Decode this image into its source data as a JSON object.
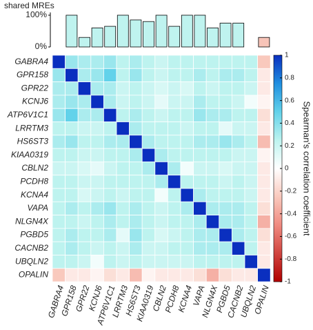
{
  "chart_data": [
    {
      "type": "bar",
      "title": "shared MREs",
      "values": [
        0,
        100,
        30,
        60,
        65,
        100,
        85,
        80,
        100,
        65,
        100,
        100,
        60,
        75,
        75,
        0,
        30
      ],
      "colors": [
        "#bff3ef",
        "#bff3ef",
        "#bff3ef",
        "#bff3ef",
        "#bff3ef",
        "#bff3ef",
        "#bff3ef",
        "#bff3ef",
        "#bff3ef",
        "#bff3ef",
        "#bff3ef",
        "#bff3ef",
        "#bff3ef",
        "#bff3ef",
        "#bff3ef",
        "#bff3ef",
        "#f7c4b8"
      ],
      "ylim": [
        0,
        100
      ],
      "yticks": [
        {
          "value": 0,
          "label": "0%"
        },
        {
          "value": 100,
          "label": "100%"
        }
      ]
    },
    {
      "type": "heatmap",
      "xcategories": [
        "GABRA4",
        "GPR158",
        "GPR22",
        "KCNJ6",
        "ATP6V1C1",
        "LRRTM3",
        "HS6ST3",
        "KIAA0319",
        "CBLN2",
        "PCDH8",
        "KCNA4",
        "VAPA",
        "NLGN4X",
        "PGBD5",
        "CACNB2",
        "UBQLN2",
        "OPALIN"
      ],
      "ycategories": [
        "GABRA4",
        "GPR158",
        "GPR22",
        "KCNJ6",
        "ATP6V1C1",
        "LRRTM3",
        "HS6ST3",
        "KIAA0319",
        "CBLN2",
        "PCDH8",
        "KCNA4",
        "VAPA",
        "NLGN4X",
        "PGBD5",
        "CACNB2",
        "UBQLN2",
        "OPALIN"
      ],
      "z": [
        [
          1,
          0.35,
          0.3,
          0.3,
          0.35,
          0.25,
          0.3,
          0.25,
          0.2,
          0.25,
          0.25,
          0.25,
          0.25,
          0.25,
          0.25,
          0.25,
          -0.25
        ],
        [
          0.35,
          1,
          0.3,
          0.35,
          0.5,
          0.25,
          0.35,
          0.25,
          0.2,
          0.25,
          0.25,
          0.3,
          0.25,
          0.3,
          0.3,
          0.25,
          -0.1
        ],
        [
          0.3,
          0.3,
          1,
          0.3,
          0.3,
          0.2,
          0.25,
          0.2,
          0.15,
          0.2,
          0.15,
          0.25,
          0.2,
          0.25,
          0.25,
          0.2,
          -0.1
        ],
        [
          0.3,
          0.35,
          0.3,
          1,
          0.3,
          0.2,
          0.25,
          0.2,
          0.1,
          0.2,
          0.2,
          0.3,
          0.25,
          0.25,
          0.2,
          0.05,
          -0.05
        ],
        [
          0.35,
          0.5,
          0.3,
          0.3,
          1,
          0.25,
          0.3,
          0.25,
          0.2,
          0.25,
          0.25,
          0.35,
          0.3,
          0.3,
          0.25,
          0.25,
          -0.15
        ],
        [
          0.25,
          0.25,
          0.2,
          0.2,
          0.25,
          1,
          0.3,
          0.25,
          0.25,
          0.25,
          0.2,
          0.25,
          0.25,
          0.1,
          0.2,
          0.2,
          -0.1
        ],
        [
          0.3,
          0.35,
          0.25,
          0.25,
          0.3,
          0.3,
          1,
          0.3,
          0.25,
          0.25,
          0.25,
          0.3,
          0.3,
          0.35,
          0.3,
          0.25,
          -0.3
        ],
        [
          0.25,
          0.25,
          0.2,
          0.2,
          0.25,
          0.25,
          0.3,
          1,
          0.3,
          0.25,
          0.25,
          0.25,
          0.25,
          0.25,
          0.2,
          0.2,
          -0.05
        ],
        [
          0.2,
          0.2,
          0.15,
          0.1,
          0.2,
          0.25,
          0.25,
          0.3,
          1,
          0.3,
          0.05,
          0.2,
          0.2,
          0.15,
          0.2,
          0.2,
          -0.1
        ],
        [
          0.25,
          0.25,
          0.2,
          0.2,
          0.25,
          0.25,
          0.25,
          0.25,
          0.3,
          1,
          0.25,
          0.25,
          0.25,
          0.2,
          0.25,
          0.2,
          -0.1
        ],
        [
          0.25,
          0.25,
          0.15,
          0.2,
          0.25,
          0.2,
          0.25,
          0.25,
          0.05,
          0.25,
          1,
          0.3,
          0.25,
          0.25,
          0.25,
          0.2,
          -0.1
        ],
        [
          0.25,
          0.3,
          0.25,
          0.3,
          0.35,
          0.25,
          0.3,
          0.25,
          0.2,
          0.25,
          0.3,
          1,
          0.3,
          0.3,
          0.3,
          0.25,
          -0.15
        ],
        [
          0.25,
          0.25,
          0.2,
          0.25,
          0.3,
          0.25,
          0.3,
          0.25,
          0.2,
          0.25,
          0.25,
          0.3,
          1,
          0.3,
          0.3,
          0.25,
          -0.35
        ],
        [
          0.25,
          0.3,
          0.25,
          0.25,
          0.3,
          0.1,
          0.35,
          0.25,
          0.15,
          0.2,
          0.25,
          0.3,
          0.3,
          1,
          0.3,
          0.25,
          -0.15
        ],
        [
          0.25,
          0.3,
          0.25,
          0.2,
          0.25,
          0.2,
          0.3,
          0.2,
          0.2,
          0.25,
          0.25,
          0.3,
          0.3,
          0.3,
          1,
          0.25,
          -0.1
        ],
        [
          0.25,
          0.25,
          0.2,
          0.05,
          0.25,
          0.2,
          0.25,
          0.2,
          0.2,
          0.2,
          0.2,
          0.25,
          0.25,
          0.25,
          0.25,
          1,
          -0.1
        ],
        [
          -0.25,
          -0.1,
          -0.1,
          -0.05,
          -0.15,
          -0.1,
          -0.3,
          -0.05,
          -0.1,
          -0.1,
          -0.1,
          -0.15,
          -0.35,
          -0.15,
          -0.1,
          -0.1,
          1
        ]
      ],
      "colorscale": [
        [
          -1,
          "#b00000"
        ],
        [
          -0.5,
          "#f08a80"
        ],
        [
          -0.25,
          "#f9c9bd"
        ],
        [
          0,
          "#ffffff"
        ],
        [
          0.25,
          "#bdf3ef"
        ],
        [
          0.5,
          "#62d2ea"
        ],
        [
          0.75,
          "#1f8fe0"
        ],
        [
          1,
          "#0a2fbf"
        ]
      ],
      "colorbar_label": "Spearman's correlation coefficient",
      "zlim": [
        -1,
        1
      ],
      "zticks": [
        1,
        0.8,
        0.6,
        0.4,
        0.2,
        0,
        -0.2,
        -0.4,
        -0.6,
        -0.8,
        -1
      ]
    }
  ]
}
